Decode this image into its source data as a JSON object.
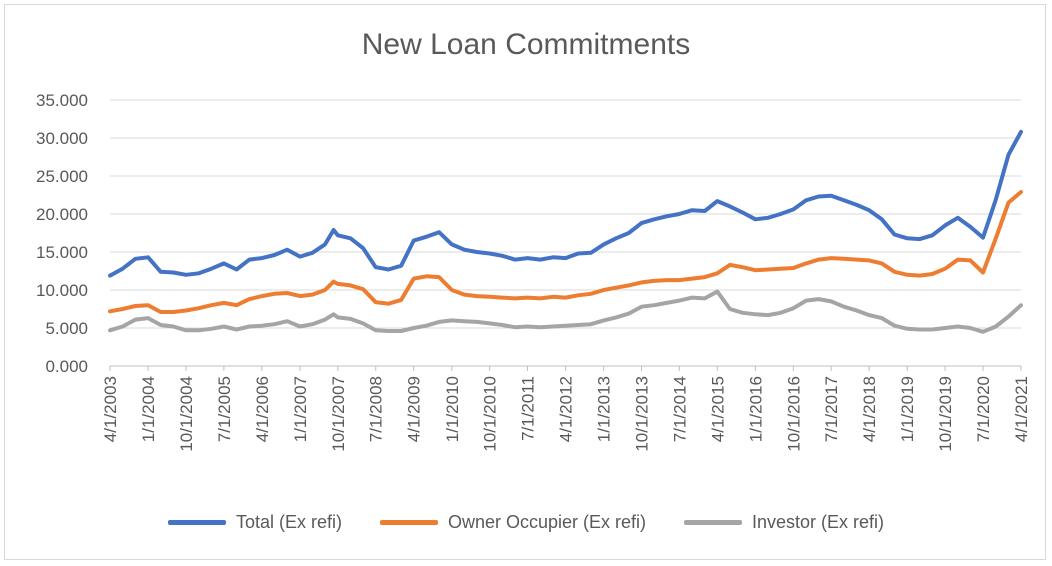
{
  "chart_data": {
    "type": "line",
    "title": "New Loan Commitments",
    "ylim": [
      0,
      35
    ],
    "y_ticks": [
      "0.000",
      "5.000",
      "10.000",
      "15.000",
      "20.000",
      "25.000",
      "30.000",
      "35.000"
    ],
    "x_ticks": [
      "4/1/2003",
      "1/1/2004",
      "10/1/2004",
      "7/1/2005",
      "4/1/2006",
      "1/1/2007",
      "10/1/2007",
      "7/1/2008",
      "4/1/2009",
      "1/1/2010",
      "10/1/2010",
      "7/1/2011",
      "4/1/2012",
      "1/1/2013",
      "10/1/2013",
      "7/1/2014",
      "4/1/2015",
      "1/1/2016",
      "10/1/2016",
      "7/1/2017",
      "4/1/2018",
      "1/1/2019",
      "10/1/2019",
      "7/1/2020",
      "4/1/2021"
    ],
    "grid": true,
    "legend_position": "bottom",
    "series": [
      {
        "name": "Total (Ex refi)",
        "color": "#4472c4",
        "points": [
          [
            "2003-04",
            11.9
          ],
          [
            "2003-07",
            12.8
          ],
          [
            "2003-10",
            14.1
          ],
          [
            "2004-01",
            14.3
          ],
          [
            "2004-04",
            12.4
          ],
          [
            "2004-07",
            12.3
          ],
          [
            "2004-10",
            12.0
          ],
          [
            "2005-01",
            12.2
          ],
          [
            "2005-04",
            12.8
          ],
          [
            "2005-07",
            13.5
          ],
          [
            "2005-10",
            12.7
          ],
          [
            "2006-01",
            14.0
          ],
          [
            "2006-04",
            14.2
          ],
          [
            "2006-07",
            14.6
          ],
          [
            "2006-10",
            15.3
          ],
          [
            "2007-01",
            14.4
          ],
          [
            "2007-04",
            14.9
          ],
          [
            "2007-07",
            16.0
          ],
          [
            "2007-09",
            17.9
          ],
          [
            "2007-10",
            17.2
          ],
          [
            "2008-01",
            16.8
          ],
          [
            "2008-04",
            15.5
          ],
          [
            "2008-07",
            13.0
          ],
          [
            "2008-10",
            12.7
          ],
          [
            "2009-01",
            13.2
          ],
          [
            "2009-04",
            16.5
          ],
          [
            "2009-07",
            17.0
          ],
          [
            "2009-10",
            17.6
          ],
          [
            "2010-01",
            16.0
          ],
          [
            "2010-04",
            15.3
          ],
          [
            "2010-07",
            15.0
          ],
          [
            "2010-10",
            14.8
          ],
          [
            "2011-01",
            14.5
          ],
          [
            "2011-04",
            14.0
          ],
          [
            "2011-07",
            14.2
          ],
          [
            "2011-10",
            14.0
          ],
          [
            "2012-01",
            14.3
          ],
          [
            "2012-04",
            14.2
          ],
          [
            "2012-07",
            14.8
          ],
          [
            "2012-10",
            14.9
          ],
          [
            "2013-01",
            16.0
          ],
          [
            "2013-04",
            16.8
          ],
          [
            "2013-07",
            17.5
          ],
          [
            "2013-10",
            18.8
          ],
          [
            "2014-01",
            19.3
          ],
          [
            "2014-04",
            19.7
          ],
          [
            "2014-07",
            20.0
          ],
          [
            "2014-10",
            20.5
          ],
          [
            "2015-01",
            20.4
          ],
          [
            "2015-04",
            21.7
          ],
          [
            "2015-07",
            21.0
          ],
          [
            "2015-10",
            20.2
          ],
          [
            "2016-01",
            19.3
          ],
          [
            "2016-04",
            19.5
          ],
          [
            "2016-07",
            20.0
          ],
          [
            "2016-10",
            20.6
          ],
          [
            "2017-01",
            21.8
          ],
          [
            "2017-04",
            22.3
          ],
          [
            "2017-07",
            22.4
          ],
          [
            "2017-10",
            21.8
          ],
          [
            "2018-01",
            21.2
          ],
          [
            "2018-04",
            20.5
          ],
          [
            "2018-07",
            19.3
          ],
          [
            "2018-10",
            17.3
          ],
          [
            "2019-01",
            16.8
          ],
          [
            "2019-04",
            16.7
          ],
          [
            "2019-07",
            17.2
          ],
          [
            "2019-10",
            18.5
          ],
          [
            "2020-01",
            19.5
          ],
          [
            "2020-04",
            18.3
          ],
          [
            "2020-07",
            16.9
          ],
          [
            "2020-10",
            21.9
          ],
          [
            "2021-01",
            27.8
          ],
          [
            "2021-04",
            30.8
          ]
        ]
      },
      {
        "name": "Owner Occupier (Ex refi)",
        "color": "#ed7d31",
        "points": [
          [
            "2003-04",
            7.2
          ],
          [
            "2003-07",
            7.5
          ],
          [
            "2003-10",
            7.9
          ],
          [
            "2004-01",
            8.0
          ],
          [
            "2004-04",
            7.1
          ],
          [
            "2004-07",
            7.1
          ],
          [
            "2004-10",
            7.3
          ],
          [
            "2005-01",
            7.6
          ],
          [
            "2005-04",
            8.0
          ],
          [
            "2005-07",
            8.3
          ],
          [
            "2005-10",
            8.0
          ],
          [
            "2006-01",
            8.8
          ],
          [
            "2006-04",
            9.2
          ],
          [
            "2006-07",
            9.5
          ],
          [
            "2006-10",
            9.6
          ],
          [
            "2007-01",
            9.2
          ],
          [
            "2007-04",
            9.4
          ],
          [
            "2007-07",
            10.0
          ],
          [
            "2007-09",
            11.1
          ],
          [
            "2007-10",
            10.8
          ],
          [
            "2008-01",
            10.6
          ],
          [
            "2008-04",
            10.1
          ],
          [
            "2008-07",
            8.4
          ],
          [
            "2008-10",
            8.2
          ],
          [
            "2009-01",
            8.7
          ],
          [
            "2009-04",
            11.5
          ],
          [
            "2009-07",
            11.8
          ],
          [
            "2009-10",
            11.7
          ],
          [
            "2010-01",
            10.0
          ],
          [
            "2010-04",
            9.4
          ],
          [
            "2010-07",
            9.2
          ],
          [
            "2010-10",
            9.1
          ],
          [
            "2011-01",
            9.0
          ],
          [
            "2011-04",
            8.9
          ],
          [
            "2011-07",
            9.0
          ],
          [
            "2011-10",
            8.9
          ],
          [
            "2012-01",
            9.1
          ],
          [
            "2012-04",
            9.0
          ],
          [
            "2012-07",
            9.3
          ],
          [
            "2012-10",
            9.5
          ],
          [
            "2013-01",
            10.0
          ],
          [
            "2013-04",
            10.3
          ],
          [
            "2013-07",
            10.6
          ],
          [
            "2013-10",
            11.0
          ],
          [
            "2014-01",
            11.2
          ],
          [
            "2014-04",
            11.3
          ],
          [
            "2014-07",
            11.3
          ],
          [
            "2014-10",
            11.5
          ],
          [
            "2015-01",
            11.7
          ],
          [
            "2015-04",
            12.2
          ],
          [
            "2015-07",
            13.3
          ],
          [
            "2015-10",
            13.0
          ],
          [
            "2016-01",
            12.6
          ],
          [
            "2016-04",
            12.7
          ],
          [
            "2016-07",
            12.8
          ],
          [
            "2016-10",
            12.9
          ],
          [
            "2017-01",
            13.5
          ],
          [
            "2017-04",
            14.0
          ],
          [
            "2017-07",
            14.2
          ],
          [
            "2017-10",
            14.1
          ],
          [
            "2018-01",
            14.0
          ],
          [
            "2018-04",
            13.9
          ],
          [
            "2018-07",
            13.5
          ],
          [
            "2018-10",
            12.4
          ],
          [
            "2019-01",
            12.0
          ],
          [
            "2019-04",
            11.9
          ],
          [
            "2019-07",
            12.1
          ],
          [
            "2019-10",
            12.8
          ],
          [
            "2020-01",
            14.0
          ],
          [
            "2020-04",
            13.9
          ],
          [
            "2020-07",
            12.3
          ],
          [
            "2020-10",
            16.8
          ],
          [
            "2021-01",
            21.5
          ],
          [
            "2021-04",
            22.9
          ]
        ]
      },
      {
        "name": "Investor (Ex refi)",
        "color": "#a5a5a5",
        "points": [
          [
            "2003-04",
            4.7
          ],
          [
            "2003-07",
            5.2
          ],
          [
            "2003-10",
            6.1
          ],
          [
            "2004-01",
            6.3
          ],
          [
            "2004-04",
            5.4
          ],
          [
            "2004-07",
            5.2
          ],
          [
            "2004-10",
            4.7
          ],
          [
            "2005-01",
            4.7
          ],
          [
            "2005-04",
            4.9
          ],
          [
            "2005-07",
            5.2
          ],
          [
            "2005-10",
            4.8
          ],
          [
            "2006-01",
            5.2
          ],
          [
            "2006-04",
            5.3
          ],
          [
            "2006-07",
            5.5
          ],
          [
            "2006-10",
            5.9
          ],
          [
            "2007-01",
            5.2
          ],
          [
            "2007-04",
            5.5
          ],
          [
            "2007-07",
            6.1
          ],
          [
            "2007-09",
            6.8
          ],
          [
            "2007-10",
            6.4
          ],
          [
            "2008-01",
            6.2
          ],
          [
            "2008-04",
            5.6
          ],
          [
            "2008-07",
            4.7
          ],
          [
            "2008-10",
            4.6
          ],
          [
            "2009-01",
            4.6
          ],
          [
            "2009-04",
            5.0
          ],
          [
            "2009-07",
            5.3
          ],
          [
            "2009-10",
            5.8
          ],
          [
            "2010-01",
            6.0
          ],
          [
            "2010-04",
            5.9
          ],
          [
            "2010-07",
            5.8
          ],
          [
            "2010-10",
            5.6
          ],
          [
            "2011-01",
            5.4
          ],
          [
            "2011-04",
            5.1
          ],
          [
            "2011-07",
            5.2
          ],
          [
            "2011-10",
            5.1
          ],
          [
            "2012-01",
            5.2
          ],
          [
            "2012-04",
            5.3
          ],
          [
            "2012-07",
            5.4
          ],
          [
            "2012-10",
            5.5
          ],
          [
            "2013-01",
            6.0
          ],
          [
            "2013-04",
            6.4
          ],
          [
            "2013-07",
            6.9
          ],
          [
            "2013-10",
            7.8
          ],
          [
            "2014-01",
            8.0
          ],
          [
            "2014-04",
            8.3
          ],
          [
            "2014-07",
            8.6
          ],
          [
            "2014-10",
            9.0
          ],
          [
            "2015-01",
            8.9
          ],
          [
            "2015-04",
            9.8
          ],
          [
            "2015-07",
            7.5
          ],
          [
            "2015-10",
            7.0
          ],
          [
            "2016-01",
            6.8
          ],
          [
            "2016-04",
            6.7
          ],
          [
            "2016-07",
            7.0
          ],
          [
            "2016-10",
            7.6
          ],
          [
            "2017-01",
            8.6
          ],
          [
            "2017-04",
            8.8
          ],
          [
            "2017-07",
            8.5
          ],
          [
            "2017-10",
            7.8
          ],
          [
            "2018-01",
            7.3
          ],
          [
            "2018-04",
            6.7
          ],
          [
            "2018-07",
            6.3
          ],
          [
            "2018-10",
            5.3
          ],
          [
            "2019-01",
            4.9
          ],
          [
            "2019-04",
            4.8
          ],
          [
            "2019-07",
            4.8
          ],
          [
            "2019-10",
            5.0
          ],
          [
            "2020-01",
            5.2
          ],
          [
            "2020-04",
            5.0
          ],
          [
            "2020-07",
            4.5
          ],
          [
            "2020-10",
            5.2
          ],
          [
            "2021-01",
            6.5
          ],
          [
            "2021-04",
            8.0
          ]
        ]
      }
    ]
  }
}
